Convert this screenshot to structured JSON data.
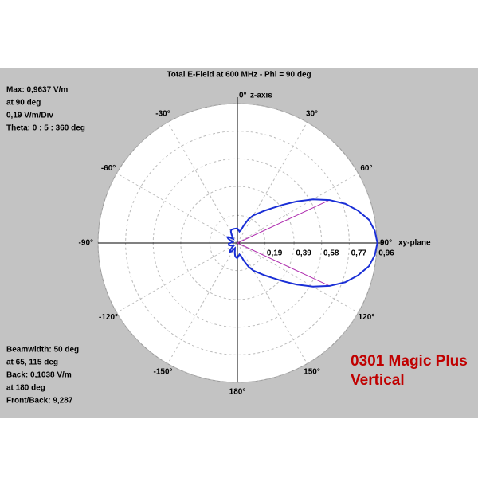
{
  "chart_data": {
    "type": "polar",
    "title": "Total E-Field at 600 MHz - Phi = 90 deg",
    "theta": [
      0,
      5,
      10,
      15,
      20,
      25,
      30,
      35,
      40,
      45,
      50,
      55,
      60,
      65,
      70,
      75,
      80,
      85,
      90,
      95,
      100,
      105,
      110,
      115,
      120,
      125,
      130,
      135,
      140,
      145,
      150,
      155,
      160,
      165,
      170,
      175,
      180,
      185,
      190,
      195,
      200,
      205,
      210,
      215,
      220,
      225,
      230,
      235,
      240,
      245,
      250,
      255,
      260,
      265,
      270,
      275,
      280,
      285,
      290,
      295,
      300,
      305,
      310,
      315,
      320,
      325,
      330,
      335,
      340,
      345,
      350,
      355
    ],
    "values": [
      0.1,
      0.09,
      0.08,
      0.09,
      0.13,
      0.18,
      0.22,
      0.25,
      0.29,
      0.34,
      0.41,
      0.5,
      0.6,
      0.7,
      0.79,
      0.86,
      0.92,
      0.95,
      0.9637,
      0.95,
      0.92,
      0.86,
      0.79,
      0.7,
      0.6,
      0.5,
      0.41,
      0.34,
      0.29,
      0.25,
      0.22,
      0.18,
      0.13,
      0.09,
      0.08,
      0.09,
      0.1038,
      0.1,
      0.09,
      0.07,
      0.05,
      0.04,
      0.05,
      0.07,
      0.08,
      0.07,
      0.05,
      0.03,
      0.03,
      0.04,
      0.05,
      0.06,
      0.06,
      0.06,
      0.05,
      0.04,
      0.03,
      0.03,
      0.05,
      0.07,
      0.08,
      0.07,
      0.05,
      0.04,
      0.05,
      0.07,
      0.09,
      0.1,
      0.1,
      0.1,
      0.1,
      0.1
    ],
    "color": "#1a2fd6",
    "beamwidth_color": "#b030b0",
    "beamwidth_theta_index": [
      13,
      23
    ],
    "rlim": [
      0,
      0.96
    ],
    "rticks": [
      {
        "value": 0.19,
        "label": "0,19"
      },
      {
        "value": 0.39,
        "label": "0,39"
      },
      {
        "value": 0.58,
        "label": "0,58"
      },
      {
        "value": 0.77,
        "label": "0,77"
      },
      {
        "value": 0.96,
        "label": "0,96"
      }
    ],
    "thetaticks": [
      {
        "value": 0,
        "label": "0°"
      },
      {
        "value": 30,
        "label": "30°"
      },
      {
        "value": 60,
        "label": "60°"
      },
      {
        "value": 90,
        "label": "90°"
      },
      {
        "value": 120,
        "label": "120°"
      },
      {
        "value": 150,
        "label": "150°"
      },
      {
        "value": 180,
        "label": "180°"
      },
      {
        "value": -150,
        "label": "-150°"
      },
      {
        "value": -120,
        "label": "-120°"
      },
      {
        "value": -90,
        "label": "-90°"
      },
      {
        "value": -60,
        "label": "-60°"
      },
      {
        "value": -30,
        "label": "-30°"
      }
    ],
    "zero_axis_label": "z-axis",
    "ninety_axis_label": "xy-plane",
    "info_top": [
      "Max: 0,9637 V/m",
      "at 90 deg",
      "0,19 V/m/Div",
      "Theta: 0 : 5 : 360 deg"
    ],
    "info_bottom": [
      "Beamwidth: 50 deg",
      "at 65, 115 deg",
      "Back: 0,1038 V/m",
      "at 180 deg",
      "Front/Back: 9,287"
    ],
    "note": [
      "0301 Magic Plus",
      "Vertical"
    ],
    "grid": true
  }
}
